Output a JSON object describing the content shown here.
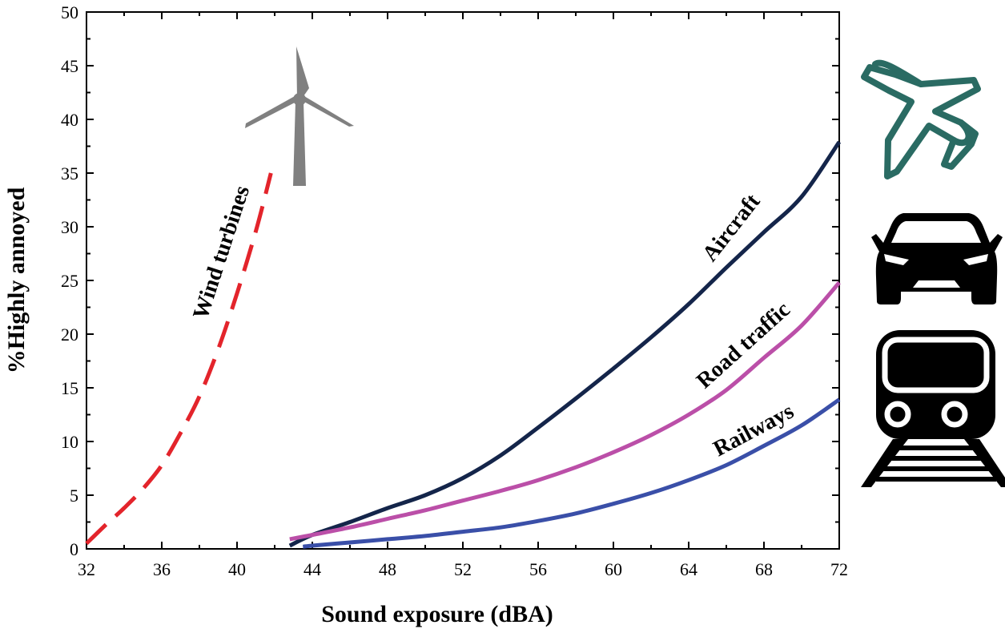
{
  "chart_data": {
    "type": "line",
    "xlabel": "Sound exposure (dBA)",
    "ylabel": "%Highly annoyed",
    "xlim": [
      32,
      72
    ],
    "ylim": [
      0,
      50
    ],
    "xticks": [
      32,
      36,
      40,
      44,
      48,
      52,
      56,
      60,
      64,
      68,
      72
    ],
    "yticks": [
      0,
      5,
      10,
      15,
      20,
      25,
      30,
      35,
      40,
      45,
      50
    ],
    "grid": false,
    "series": [
      {
        "name": "Wind turbines",
        "color": "#e3242b",
        "style": "dashed",
        "x": [
          32,
          33,
          34,
          35,
          36,
          37,
          38,
          39,
          40,
          41,
          41.8
        ],
        "y": [
          0.5,
          2.2,
          3.8,
          5.6,
          7.8,
          10.8,
          14.2,
          18.6,
          23.8,
          29.6,
          35
        ]
      },
      {
        "name": "Aircraft",
        "color": "#14254a",
        "style": "solid",
        "x": [
          42.8,
          44,
          46,
          48,
          50,
          52,
          54,
          56,
          58,
          60,
          62,
          64,
          66,
          68,
          70,
          72
        ],
        "y": [
          0.3,
          1.3,
          2.5,
          3.8,
          5.0,
          6.6,
          8.7,
          11.3,
          14.0,
          16.8,
          19.7,
          22.8,
          26.2,
          29.5,
          32.8,
          37.9
        ]
      },
      {
        "name": "Road traffic",
        "color": "#bb4fa8",
        "style": "solid",
        "x": [
          42.8,
          44,
          46,
          48,
          50,
          52,
          54,
          56,
          58,
          60,
          62,
          64,
          66,
          68,
          70,
          72
        ],
        "y": [
          0.9,
          1.3,
          2.0,
          2.8,
          3.6,
          4.5,
          5.4,
          6.4,
          7.6,
          9.0,
          10.6,
          12.5,
          14.8,
          17.8,
          20.8,
          24.8
        ]
      },
      {
        "name": "Railways",
        "color": "#3a4fa8",
        "style": "solid",
        "x": [
          43.5,
          44,
          46,
          48,
          50,
          52,
          54,
          56,
          58,
          60,
          62,
          64,
          66,
          68,
          70,
          72
        ],
        "y": [
          0.2,
          0.3,
          0.6,
          0.9,
          1.2,
          1.6,
          2.0,
          2.6,
          3.3,
          4.2,
          5.2,
          6.4,
          7.8,
          9.6,
          11.5,
          13.9
        ]
      }
    ],
    "annotations": [
      {
        "text": "Wind turbines",
        "series": "Wind turbines"
      },
      {
        "text": "Aircraft",
        "series": "Aircraft"
      },
      {
        "text": "Road traffic",
        "series": "Road traffic"
      },
      {
        "text": "Railways",
        "series": "Railways"
      }
    ],
    "icons": [
      "wind-turbine-icon",
      "airplane-icon",
      "car-icon",
      "train-icon"
    ]
  }
}
